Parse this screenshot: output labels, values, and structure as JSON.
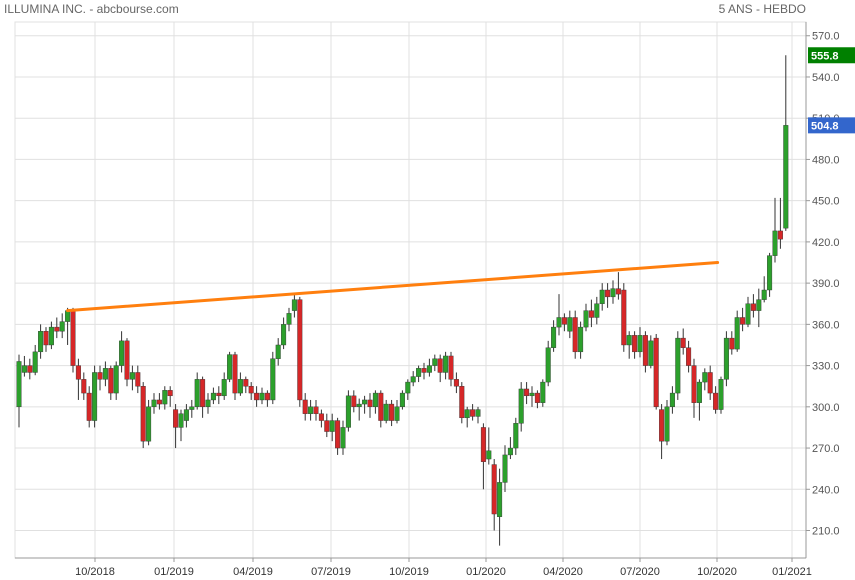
{
  "header": {
    "title": "ILLUMINA INC. - abcbourse.com",
    "period": "5 ANS - HEBDO"
  },
  "price_tags": {
    "high": {
      "label": "555.8",
      "value": 555.8,
      "color": "#008000"
    },
    "last": {
      "label": "504.8",
      "value": 504.8,
      "color": "#3366cc"
    }
  },
  "colors": {
    "up": "#2ca02c",
    "down": "#d62728",
    "trendline": "#ff7f0e",
    "grid": "#e0e0e0",
    "axis": "#999999"
  },
  "chart_data": {
    "type": "candlestick",
    "ylim": [
      190,
      580
    ],
    "y_ticks": [
      "210.0",
      "240.0",
      "270.0",
      "300.0",
      "330.0",
      "360.0",
      "390.0",
      "420.0",
      "450.0",
      "480.0",
      "510.0",
      "540.0",
      "570.0"
    ],
    "x_ticks": [
      "10/2018",
      "01/2019",
      "04/2019",
      "07/2019",
      "10/2019",
      "01/2020",
      "04/2020",
      "07/2020",
      "10/2020",
      "01/2021"
    ],
    "grid": true,
    "trendline": {
      "from": {
        "x": "2018-08-27",
        "y": 370
      },
      "to": {
        "x": "2020-12-21",
        "y": 405
      }
    },
    "candles": [
      {
        "o": 300,
        "c": 333,
        "h": 338,
        "l": 285
      },
      {
        "o": 325,
        "c": 330,
        "h": 337,
        "l": 322
      },
      {
        "o": 330,
        "c": 325,
        "h": 335,
        "l": 320
      },
      {
        "o": 325,
        "c": 340,
        "h": 345,
        "l": 323
      },
      {
        "o": 340,
        "c": 355,
        "h": 360,
        "l": 335
      },
      {
        "o": 355,
        "c": 345,
        "h": 358,
        "l": 340
      },
      {
        "o": 345,
        "c": 358,
        "h": 362,
        "l": 342
      },
      {
        "o": 358,
        "c": 355,
        "h": 365,
        "l": 350
      },
      {
        "o": 355,
        "c": 362,
        "h": 368,
        "l": 350
      },
      {
        "o": 362,
        "c": 370,
        "h": 372,
        "l": 345
      },
      {
        "o": 370,
        "c": 330,
        "h": 372,
        "l": 325
      },
      {
        "o": 330,
        "c": 320,
        "h": 335,
        "l": 305
      },
      {
        "o": 320,
        "c": 310,
        "h": 325,
        "l": 305
      },
      {
        "o": 310,
        "c": 290,
        "h": 315,
        "l": 285
      },
      {
        "o": 290,
        "c": 325,
        "h": 330,
        "l": 285
      },
      {
        "o": 325,
        "c": 320,
        "h": 330,
        "l": 312
      },
      {
        "o": 320,
        "c": 328,
        "h": 333,
        "l": 315
      },
      {
        "o": 328,
        "c": 310,
        "h": 330,
        "l": 305
      },
      {
        "o": 310,
        "c": 330,
        "h": 333,
        "l": 305
      },
      {
        "o": 330,
        "c": 348,
        "h": 355,
        "l": 325
      },
      {
        "o": 348,
        "c": 320,
        "h": 350,
        "l": 315
      },
      {
        "o": 320,
        "c": 325,
        "h": 330,
        "l": 312
      },
      {
        "o": 325,
        "c": 315,
        "h": 330,
        "l": 310
      },
      {
        "o": 315,
        "c": 275,
        "h": 318,
        "l": 270
      },
      {
        "o": 275,
        "c": 300,
        "h": 305,
        "l": 272
      },
      {
        "o": 300,
        "c": 305,
        "h": 310,
        "l": 295
      },
      {
        "o": 305,
        "c": 302,
        "h": 310,
        "l": 298
      },
      {
        "o": 302,
        "c": 312,
        "h": 315,
        "l": 298
      },
      {
        "o": 312,
        "c": 308,
        "h": 315,
        "l": 300
      },
      {
        "o": 298,
        "c": 285,
        "h": 302,
        "l": 270
      },
      {
        "o": 285,
        "c": 295,
        "h": 298,
        "l": 275
      },
      {
        "o": 290,
        "c": 298,
        "h": 302,
        "l": 285
      },
      {
        "o": 298,
        "c": 300,
        "h": 305,
        "l": 292
      },
      {
        "o": 300,
        "c": 320,
        "h": 325,
        "l": 298
      },
      {
        "o": 320,
        "c": 300,
        "h": 322,
        "l": 292
      },
      {
        "o": 300,
        "c": 305,
        "h": 310,
        "l": 295
      },
      {
        "o": 305,
        "c": 310,
        "h": 314,
        "l": 302
      },
      {
        "o": 310,
        "c": 308,
        "h": 315,
        "l": 302
      },
      {
        "o": 308,
        "c": 320,
        "h": 325,
        "l": 305
      },
      {
        "o": 320,
        "c": 338,
        "h": 340,
        "l": 318
      },
      {
        "o": 338,
        "c": 310,
        "h": 340,
        "l": 305
      },
      {
        "o": 310,
        "c": 320,
        "h": 325,
        "l": 308
      },
      {
        "o": 320,
        "c": 315,
        "h": 322,
        "l": 310
      },
      {
        "o": 315,
        "c": 310,
        "h": 318,
        "l": 305
      },
      {
        "o": 310,
        "c": 305,
        "h": 315,
        "l": 300
      },
      {
        "o": 305,
        "c": 310,
        "h": 314,
        "l": 302
      },
      {
        "o": 310,
        "c": 305,
        "h": 312,
        "l": 300
      },
      {
        "o": 305,
        "c": 335,
        "h": 340,
        "l": 302
      },
      {
        "o": 335,
        "c": 345,
        "h": 350,
        "l": 330
      },
      {
        "o": 345,
        "c": 360,
        "h": 365,
        "l": 342
      },
      {
        "o": 360,
        "c": 368,
        "h": 372,
        "l": 355
      },
      {
        "o": 370,
        "c": 378,
        "h": 382,
        "l": 365
      },
      {
        "o": 378,
        "c": 305,
        "h": 380,
        "l": 300
      },
      {
        "o": 305,
        "c": 295,
        "h": 310,
        "l": 290
      },
      {
        "o": 295,
        "c": 300,
        "h": 305,
        "l": 290
      },
      {
        "o": 300,
        "c": 295,
        "h": 305,
        "l": 290
      },
      {
        "o": 295,
        "c": 290,
        "h": 298,
        "l": 285
      },
      {
        "o": 290,
        "c": 282,
        "h": 295,
        "l": 278
      },
      {
        "o": 282,
        "c": 290,
        "h": 295,
        "l": 275
      },
      {
        "o": 290,
        "c": 270,
        "h": 292,
        "l": 265
      },
      {
        "o": 270,
        "c": 285,
        "h": 290,
        "l": 265
      },
      {
        "o": 285,
        "c": 308,
        "h": 312,
        "l": 282
      },
      {
        "o": 308,
        "c": 300,
        "h": 312,
        "l": 296
      },
      {
        "o": 300,
        "c": 302,
        "h": 306,
        "l": 290
      },
      {
        "o": 302,
        "c": 305,
        "h": 308,
        "l": 295
      },
      {
        "o": 305,
        "c": 300,
        "h": 310,
        "l": 292
      },
      {
        "o": 300,
        "c": 310,
        "h": 312,
        "l": 295
      },
      {
        "o": 310,
        "c": 290,
        "h": 312,
        "l": 285
      },
      {
        "o": 290,
        "c": 302,
        "h": 305,
        "l": 288
      },
      {
        "o": 302,
        "c": 290,
        "h": 305,
        "l": 286
      },
      {
        "o": 290,
        "c": 300,
        "h": 305,
        "l": 288
      },
      {
        "o": 300,
        "c": 310,
        "h": 312,
        "l": 298
      },
      {
        "o": 310,
        "c": 318,
        "h": 320,
        "l": 305
      },
      {
        "o": 318,
        "c": 322,
        "h": 326,
        "l": 315
      },
      {
        "o": 322,
        "c": 328,
        "h": 330,
        "l": 318
      },
      {
        "o": 328,
        "c": 325,
        "h": 332,
        "l": 320
      },
      {
        "o": 325,
        "c": 330,
        "h": 335,
        "l": 322
      },
      {
        "o": 330,
        "c": 335,
        "h": 338,
        "l": 326
      },
      {
        "o": 335,
        "c": 325,
        "h": 338,
        "l": 318
      },
      {
        "o": 325,
        "c": 337,
        "h": 340,
        "l": 320
      },
      {
        "o": 337,
        "c": 320,
        "h": 340,
        "l": 315
      },
      {
        "o": 320,
        "c": 315,
        "h": 325,
        "l": 310
      },
      {
        "o": 315,
        "c": 292,
        "h": 318,
        "l": 288
      },
      {
        "o": 292,
        "c": 298,
        "h": 300,
        "l": 285
      },
      {
        "o": 298,
        "c": 293,
        "h": 302,
        "l": 290
      },
      {
        "o": 293,
        "c": 298,
        "h": 300,
        "l": 288
      },
      {
        "o": 285,
        "c": 260,
        "h": 288,
        "l": 240
      },
      {
        "o": 262,
        "c": 268,
        "h": 285,
        "l": 258
      },
      {
        "o": 258,
        "c": 222,
        "h": 262,
        "l": 210
      },
      {
        "o": 220,
        "c": 245,
        "h": 255,
        "l": 199
      },
      {
        "o": 245,
        "c": 265,
        "h": 272,
        "l": 238
      },
      {
        "o": 265,
        "c": 270,
        "h": 278,
        "l": 262
      },
      {
        "o": 270,
        "c": 288,
        "h": 292,
        "l": 265
      },
      {
        "o": 288,
        "c": 313,
        "h": 318,
        "l": 282
      },
      {
        "o": 313,
        "c": 308,
        "h": 318,
        "l": 302
      },
      {
        "o": 308,
        "c": 310,
        "h": 315,
        "l": 300
      },
      {
        "o": 310,
        "c": 303,
        "h": 312,
        "l": 299
      },
      {
        "o": 303,
        "c": 318,
        "h": 320,
        "l": 300
      },
      {
        "o": 318,
        "c": 343,
        "h": 348,
        "l": 315
      },
      {
        "o": 343,
        "c": 358,
        "h": 363,
        "l": 340
      },
      {
        "o": 358,
        "c": 365,
        "h": 382,
        "l": 352
      },
      {
        "o": 365,
        "c": 360,
        "h": 368,
        "l": 355
      },
      {
        "o": 355,
        "c": 365,
        "h": 370,
        "l": 350
      },
      {
        "o": 365,
        "c": 340,
        "h": 370,
        "l": 335
      },
      {
        "o": 340,
        "c": 358,
        "h": 362,
        "l": 335
      },
      {
        "o": 358,
        "c": 370,
        "h": 375,
        "l": 355
      },
      {
        "o": 370,
        "c": 365,
        "h": 378,
        "l": 358
      },
      {
        "o": 365,
        "c": 375,
        "h": 380,
        "l": 360
      },
      {
        "o": 375,
        "c": 385,
        "h": 390,
        "l": 370
      },
      {
        "o": 385,
        "c": 380,
        "h": 390,
        "l": 372
      },
      {
        "o": 380,
        "c": 386,
        "h": 392,
        "l": 375
      },
      {
        "o": 386,
        "c": 382,
        "h": 398,
        "l": 378
      },
      {
        "o": 385,
        "c": 345,
        "h": 390,
        "l": 340
      },
      {
        "o": 345,
        "c": 352,
        "h": 355,
        "l": 335
      },
      {
        "o": 352,
        "c": 340,
        "h": 355,
        "l": 335
      },
      {
        "o": 340,
        "c": 352,
        "h": 358,
        "l": 336
      },
      {
        "o": 352,
        "c": 330,
        "h": 355,
        "l": 325
      },
      {
        "o": 330,
        "c": 348,
        "h": 352,
        "l": 328
      },
      {
        "o": 350,
        "c": 300,
        "h": 353,
        "l": 298
      },
      {
        "o": 298,
        "c": 275,
        "h": 302,
        "l": 262
      },
      {
        "o": 275,
        "c": 300,
        "h": 305,
        "l": 272
      },
      {
        "o": 300,
        "c": 310,
        "h": 315,
        "l": 295
      },
      {
        "o": 310,
        "c": 350,
        "h": 355,
        "l": 305
      },
      {
        "o": 350,
        "c": 343,
        "h": 357,
        "l": 338
      },
      {
        "o": 343,
        "c": 330,
        "h": 348,
        "l": 325
      },
      {
        "o": 330,
        "c": 303,
        "h": 335,
        "l": 292
      },
      {
        "o": 303,
        "c": 318,
        "h": 320,
        "l": 290
      },
      {
        "o": 318,
        "c": 325,
        "h": 328,
        "l": 312
      },
      {
        "o": 325,
        "c": 310,
        "h": 330,
        "l": 305
      },
      {
        "o": 310,
        "c": 298,
        "h": 315,
        "l": 295
      },
      {
        "o": 298,
        "c": 320,
        "h": 322,
        "l": 295
      },
      {
        "o": 320,
        "c": 350,
        "h": 355,
        "l": 315
      },
      {
        "o": 350,
        "c": 342,
        "h": 355,
        "l": 338
      },
      {
        "o": 342,
        "c": 365,
        "h": 370,
        "l": 340
      },
      {
        "o": 365,
        "c": 360,
        "h": 372,
        "l": 355
      },
      {
        "o": 360,
        "c": 375,
        "h": 380,
        "l": 358
      },
      {
        "o": 375,
        "c": 370,
        "h": 382,
        "l": 365
      },
      {
        "o": 370,
        "c": 378,
        "h": 386,
        "l": 358
      },
      {
        "o": 378,
        "c": 385,
        "h": 395,
        "l": 376
      },
      {
        "o": 385,
        "c": 410,
        "h": 412,
        "l": 380
      },
      {
        "o": 410,
        "c": 428,
        "h": 452,
        "l": 405
      },
      {
        "o": 428,
        "c": 422,
        "h": 452,
        "l": 415
      },
      {
        "o": 430,
        "c": 504.8,
        "h": 555.8,
        "l": 428
      }
    ]
  }
}
